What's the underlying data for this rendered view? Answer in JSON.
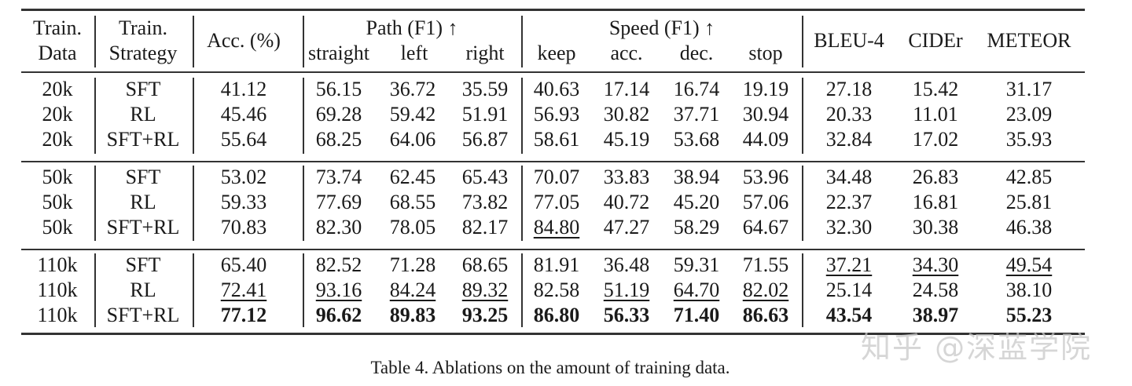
{
  "header": {
    "train_data": [
      "Train.",
      "Data"
    ],
    "train_strategy": [
      "Train.",
      "Strategy"
    ],
    "acc": "Acc. (%)",
    "path_group": "Path (F1) ↑",
    "path_cols": [
      "straight",
      "left",
      "right"
    ],
    "speed_group": "Speed (F1) ↑",
    "speed_cols": [
      "keep",
      "acc.",
      "dec.",
      "stop"
    ],
    "metrics": [
      "BLEU-4",
      "CIDEr",
      "METEOR"
    ]
  },
  "rows": [
    {
      "data": "20k",
      "strategy": "SFT",
      "values": [
        "41.12",
        "56.15",
        "36.72",
        "35.59",
        "40.63",
        "17.14",
        "16.74",
        "19.19",
        "27.18",
        "15.42",
        "31.17"
      ],
      "bold": [],
      "underline": []
    },
    {
      "data": "20k",
      "strategy": "RL",
      "values": [
        "45.46",
        "69.28",
        "59.42",
        "51.91",
        "56.93",
        "30.82",
        "37.71",
        "30.94",
        "20.33",
        "11.01",
        "23.09"
      ],
      "bold": [],
      "underline": []
    },
    {
      "data": "20k",
      "strategy": "SFT+RL",
      "values": [
        "55.64",
        "68.25",
        "64.06",
        "56.87",
        "58.61",
        "45.19",
        "53.68",
        "44.09",
        "32.84",
        "17.02",
        "35.93"
      ],
      "bold": [],
      "underline": []
    },
    {
      "data": "50k",
      "strategy": "SFT",
      "values": [
        "53.02",
        "73.74",
        "62.45",
        "65.43",
        "70.07",
        "33.83",
        "38.94",
        "53.96",
        "34.48",
        "26.83",
        "42.85"
      ],
      "bold": [],
      "underline": []
    },
    {
      "data": "50k",
      "strategy": "RL",
      "values": [
        "59.33",
        "77.69",
        "68.55",
        "73.82",
        "77.05",
        "40.72",
        "45.20",
        "57.06",
        "22.37",
        "16.81",
        "25.81"
      ],
      "bold": [],
      "underline": []
    },
    {
      "data": "50k",
      "strategy": "SFT+RL",
      "values": [
        "70.83",
        "82.30",
        "78.05",
        "82.17",
        "84.80",
        "47.27",
        "58.29",
        "64.67",
        "32.30",
        "30.38",
        "46.38"
      ],
      "bold": [],
      "underline": [
        4
      ]
    },
    {
      "data": "110k",
      "strategy": "SFT",
      "values": [
        "65.40",
        "82.52",
        "71.28",
        "68.65",
        "81.91",
        "36.48",
        "59.31",
        "71.55",
        "37.21",
        "34.30",
        "49.54"
      ],
      "bold": [],
      "underline": [
        8,
        9,
        10
      ]
    },
    {
      "data": "110k",
      "strategy": "RL",
      "values": [
        "72.41",
        "93.16",
        "84.24",
        "89.32",
        "82.58",
        "51.19",
        "64.70",
        "82.02",
        "25.14",
        "24.58",
        "38.10"
      ],
      "bold": [],
      "underline": [
        0,
        1,
        2,
        3,
        5,
        6,
        7
      ]
    },
    {
      "data": "110k",
      "strategy": "SFT+RL",
      "values": [
        "77.12",
        "96.62",
        "89.83",
        "93.25",
        "86.80",
        "56.33",
        "71.40",
        "86.63",
        "43.54",
        "38.97",
        "55.23"
      ],
      "bold": [
        0,
        1,
        2,
        3,
        4,
        5,
        6,
        7,
        8,
        9,
        10
      ],
      "underline": []
    }
  ],
  "caption": "Table 4. Ablations on the amount of training data.",
  "watermark": "知乎 @深蓝学院"
}
